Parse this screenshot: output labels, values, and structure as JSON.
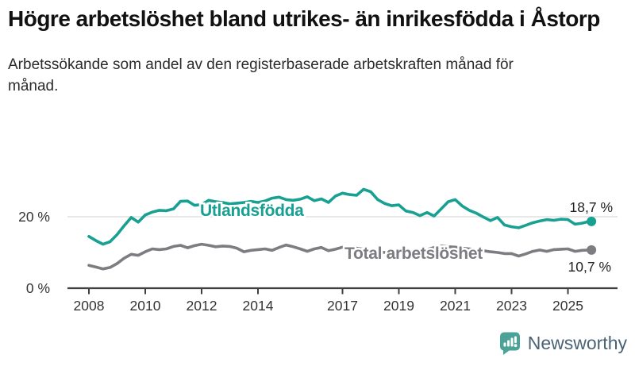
{
  "page": {
    "title": "Högre arbetslöshet bland utrikes- än inrikesfödda i Åstorp",
    "subtitle": "Arbetssökande som andel av den registerbaserade arbetskraften månad för månad."
  },
  "chart_data": {
    "type": "line",
    "title": "Högre arbetslöshet bland utrikes- än inrikesfödda i Åstorp",
    "subtitle": "Arbetssökande som andel av den registerbaserade arbetskraften månad för månad.",
    "x_unit": "decimal_year",
    "xlim": [
      2008,
      2026
    ],
    "ylim": [
      0,
      30
    ],
    "grid": "horizontal line at 20 only",
    "legend_position": "inline labels on lines",
    "x": [
      2008,
      2008.25,
      2008.5,
      2008.75,
      2009,
      2009.25,
      2009.5,
      2009.75,
      2010,
      2010.25,
      2010.5,
      2010.75,
      2011,
      2011.25,
      2011.5,
      2011.75,
      2012,
      2012.25,
      2012.5,
      2012.75,
      2013,
      2013.25,
      2013.5,
      2013.75,
      2014,
      2014.25,
      2014.5,
      2014.75,
      2015,
      2015.25,
      2015.5,
      2015.75,
      2016,
      2016.25,
      2016.5,
      2016.75,
      2017,
      2017.25,
      2017.5,
      2017.75,
      2018,
      2018.25,
      2018.5,
      2018.75,
      2019,
      2019.25,
      2019.5,
      2019.75,
      2020,
      2020.25,
      2020.5,
      2020.75,
      2021,
      2021.25,
      2021.5,
      2021.75,
      2022,
      2022.25,
      2022.5,
      2022.75,
      2023,
      2023.25,
      2023.5,
      2023.75,
      2024,
      2024.25,
      2024.5,
      2024.75,
      2025,
      2025.25,
      2025.5,
      2025.75
    ],
    "series": [
      {
        "name": "Utlandsfödda",
        "color": "#18a092",
        "end_value": 18.7,
        "end_label": "18,7 %",
        "values": [
          14.5,
          13.3,
          12.3,
          13.0,
          15.0,
          17.5,
          19.8,
          18.5,
          20.5,
          21.3,
          21.8,
          21.7,
          22.2,
          24.3,
          24.4,
          23.2,
          23.4,
          24.6,
          24.2,
          24.0,
          23.6,
          23.8,
          24.0,
          24.3,
          24.0,
          24.4,
          25.2,
          25.5,
          24.8,
          24.6,
          24.9,
          25.6,
          24.5,
          25.0,
          24.0,
          25.8,
          26.6,
          26.2,
          26.0,
          27.7,
          27.0,
          24.8,
          23.7,
          23.1,
          23.3,
          21.6,
          21.2,
          20.3,
          21.2,
          20.2,
          22.2,
          24.2,
          24.8,
          23.0,
          21.8,
          21.0,
          19.9,
          18.9,
          19.8,
          17.7,
          17.2,
          16.9,
          17.6,
          18.3,
          18.8,
          19.2,
          19.0,
          19.3,
          19.2,
          17.9,
          18.2,
          18.7
        ]
      },
      {
        "name": "Total arbetslöshet",
        "color": "#7c7c81",
        "end_value": 10.7,
        "end_label": "10,7 %",
        "values": [
          6.4,
          5.9,
          5.4,
          5.8,
          6.9,
          8.4,
          9.5,
          9.2,
          10.2,
          11.0,
          10.8,
          11.0,
          11.7,
          12.0,
          11.3,
          11.9,
          12.3,
          12.0,
          11.6,
          11.8,
          11.7,
          11.2,
          10.2,
          10.6,
          10.8,
          11.0,
          10.6,
          11.4,
          12.1,
          11.6,
          11.0,
          10.3,
          11.0,
          11.4,
          10.5,
          10.9,
          11.5,
          11.3,
          11.2,
          10.9,
          10.5,
          10.2,
          10.0,
          10.0,
          10.0,
          10.2,
          10.3,
          10.5,
          10.8,
          11.4,
          11.8,
          11.6,
          11.5,
          11.2,
          11.0,
          10.8,
          10.5,
          10.2,
          10.0,
          9.7,
          9.7,
          9.0,
          9.6,
          10.3,
          10.7,
          10.3,
          10.8,
          10.9,
          11.0,
          10.3,
          10.6,
          10.7
        ]
      }
    ],
    "x_ticks": [
      2008,
      2010,
      2012,
      2014,
      2017,
      2019,
      2021,
      2023,
      2025
    ],
    "x_tick_labels": [
      "2008",
      "2010",
      "2012",
      "2014",
      "2017",
      "2019",
      "2021",
      "2023",
      "2025"
    ],
    "y_ticks": [
      {
        "value": 0,
        "label": "0 %"
      },
      {
        "value": 20,
        "label": "20 %"
      }
    ],
    "colors": {
      "grid_line": "#e1e1e1",
      "axis_line": "#3f3f3f",
      "tick_text": "#333333",
      "end_label_text": "#1f1f1f"
    }
  },
  "footer": {
    "brand": "Newsworthy",
    "brand_color": "#4a6375",
    "icon": "newsworthy-chart-bubble",
    "icon_color": "#4ba398"
  }
}
